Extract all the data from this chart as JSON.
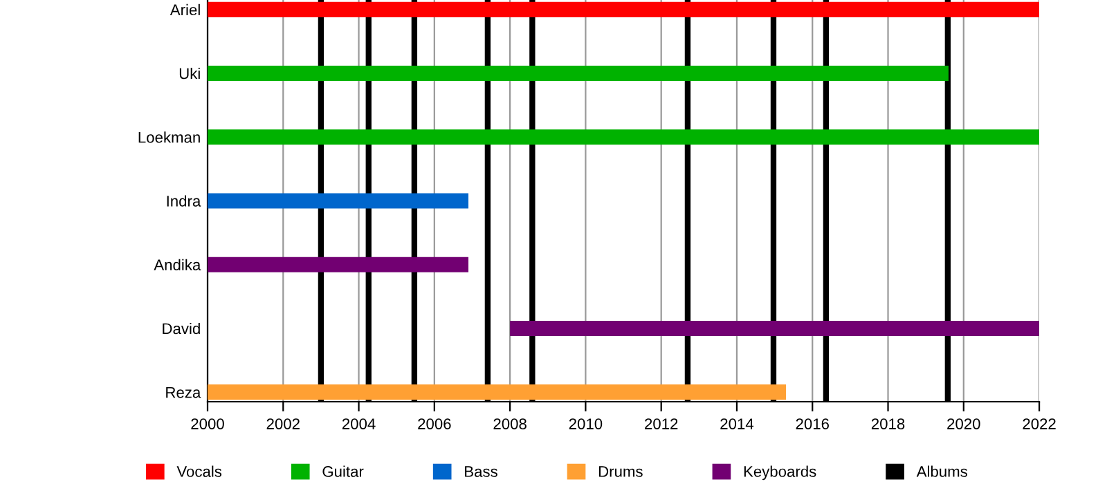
{
  "chart_data": {
    "type": "bar",
    "orientation": "horizontal",
    "categories": [
      "Ariel",
      "Uki",
      "Loekman",
      "Indra",
      "Andika",
      "David",
      "Reza"
    ],
    "series": [
      {
        "name": "Vocals",
        "color": "#ff0000",
        "base": [
          2000,
          null,
          null,
          null,
          null,
          null,
          null
        ],
        "values": [
          22,
          null,
          null,
          null,
          null,
          null,
          null
        ]
      },
      {
        "name": "Guitar",
        "color": "#00b200",
        "base": [
          null,
          2000,
          2000,
          null,
          null,
          null,
          null
        ],
        "values": [
          null,
          19.6,
          22,
          null,
          null,
          null,
          null
        ]
      },
      {
        "name": "Bass",
        "color": "#0066cc",
        "base": [
          null,
          null,
          null,
          2000,
          null,
          null,
          null
        ],
        "values": [
          null,
          null,
          null,
          6.9,
          null,
          null,
          null
        ]
      },
      {
        "name": "Drums",
        "color": "#ffa033",
        "base": [
          null,
          null,
          null,
          null,
          null,
          null,
          2000
        ],
        "values": [
          null,
          null,
          null,
          null,
          null,
          null,
          15.3
        ]
      },
      {
        "name": "Keyboards",
        "color": "#720072",
        "base": [
          null,
          null,
          null,
          null,
          2000,
          2008,
          null
        ],
        "values": [
          null,
          null,
          null,
          null,
          6.9,
          14,
          null
        ]
      }
    ],
    "xlim": [
      2000,
      2022
    ],
    "xticks": [
      2000,
      2002,
      2004,
      2006,
      2008,
      2010,
      2012,
      2014,
      2016,
      2018,
      2020,
      2022
    ],
    "grid": "x",
    "legend": "bottom",
    "ref_lines": [
      {
        "axis": "x",
        "value": 2003.0,
        "label": "Albums",
        "color": "#000000"
      },
      {
        "axis": "x",
        "value": 2004.26,
        "color": "#000000"
      },
      {
        "axis": "x",
        "value": 2005.47,
        "color": "#000000"
      },
      {
        "axis": "x",
        "value": 2007.41,
        "color": "#000000"
      },
      {
        "axis": "x",
        "value": 2008.59,
        "color": "#000000"
      },
      {
        "axis": "x",
        "value": 2012.7,
        "color": "#000000"
      },
      {
        "axis": "x",
        "value": 2014.97,
        "color": "#000000"
      },
      {
        "axis": "x",
        "value": 2016.36,
        "color": "#000000"
      },
      {
        "axis": "x",
        "value": 2019.58,
        "color": "#000000"
      }
    ]
  }
}
